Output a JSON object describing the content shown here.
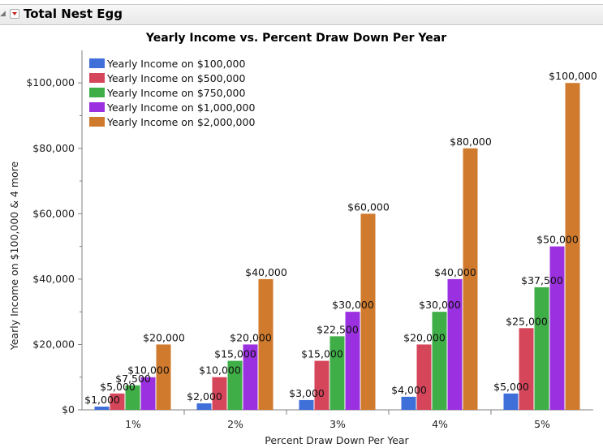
{
  "outline": {
    "title": "Total Nest Egg",
    "collapse_icon": "disclosure-triangle-icon",
    "menu_icon": "red-triangle-menu-icon"
  },
  "colors": {
    "axis": "#808080",
    "header_border": "#c9c9c9"
  },
  "chart_data": {
    "type": "bar",
    "title": "Yearly Income vs. Percent Draw Down Per Year",
    "xlabel": "Percent Draw Down Per Year",
    "ylabel": "Yearly Income on $100,000 & 4 more",
    "categories": [
      "1%",
      "2%",
      "3%",
      "4%",
      "5%"
    ],
    "ylim": [
      0,
      108000
    ],
    "yticks": [
      {
        "value": 0,
        "label": "$0"
      },
      {
        "value": 20000,
        "label": "$20,000"
      },
      {
        "value": 40000,
        "label": "$40,000"
      },
      {
        "value": 60000,
        "label": "$60,000"
      },
      {
        "value": 80000,
        "label": "$80,000"
      },
      {
        "value": 100000,
        "label": "$100,000"
      }
    ],
    "grid": false,
    "legend_position": "top-left",
    "series": [
      {
        "name": "Yearly Income on $100,000",
        "color": "#3f6fd8",
        "values": [
          1000,
          2000,
          3000,
          4000,
          5000
        ],
        "labels": [
          "$1,000",
          "$2,000",
          "$3,000",
          "$4,000",
          "$5,000"
        ]
      },
      {
        "name": "Yearly Income on $500,000",
        "color": "#d6465a",
        "values": [
          5000,
          10000,
          15000,
          20000,
          25000
        ],
        "labels": [
          "$5,000",
          "$10,000",
          "$15,000",
          "$20,000",
          "$25,000"
        ]
      },
      {
        "name": "Yearly Income on $750,000",
        "color": "#3fae47",
        "values": [
          7500,
          15000,
          22500,
          30000,
          37500
        ],
        "labels": [
          "$7,500",
          "$15,000",
          "$22,500",
          "$30,000",
          "$37,500"
        ]
      },
      {
        "name": "Yearly Income on $1,000,000",
        "color": "#9b30e0",
        "values": [
          10000,
          20000,
          30000,
          40000,
          50000
        ],
        "labels": [
          "$10,000",
          "$20,000",
          "$30,000",
          "$40,000",
          "$50,000"
        ]
      },
      {
        "name": "Yearly Income on $2,000,000",
        "color": "#d07a2d",
        "values": [
          20000,
          40000,
          60000,
          80000,
          100000
        ],
        "labels": [
          "$20,000",
          "$40,000",
          "$60,000",
          "$80,000",
          "$100,000"
        ]
      }
    ]
  }
}
